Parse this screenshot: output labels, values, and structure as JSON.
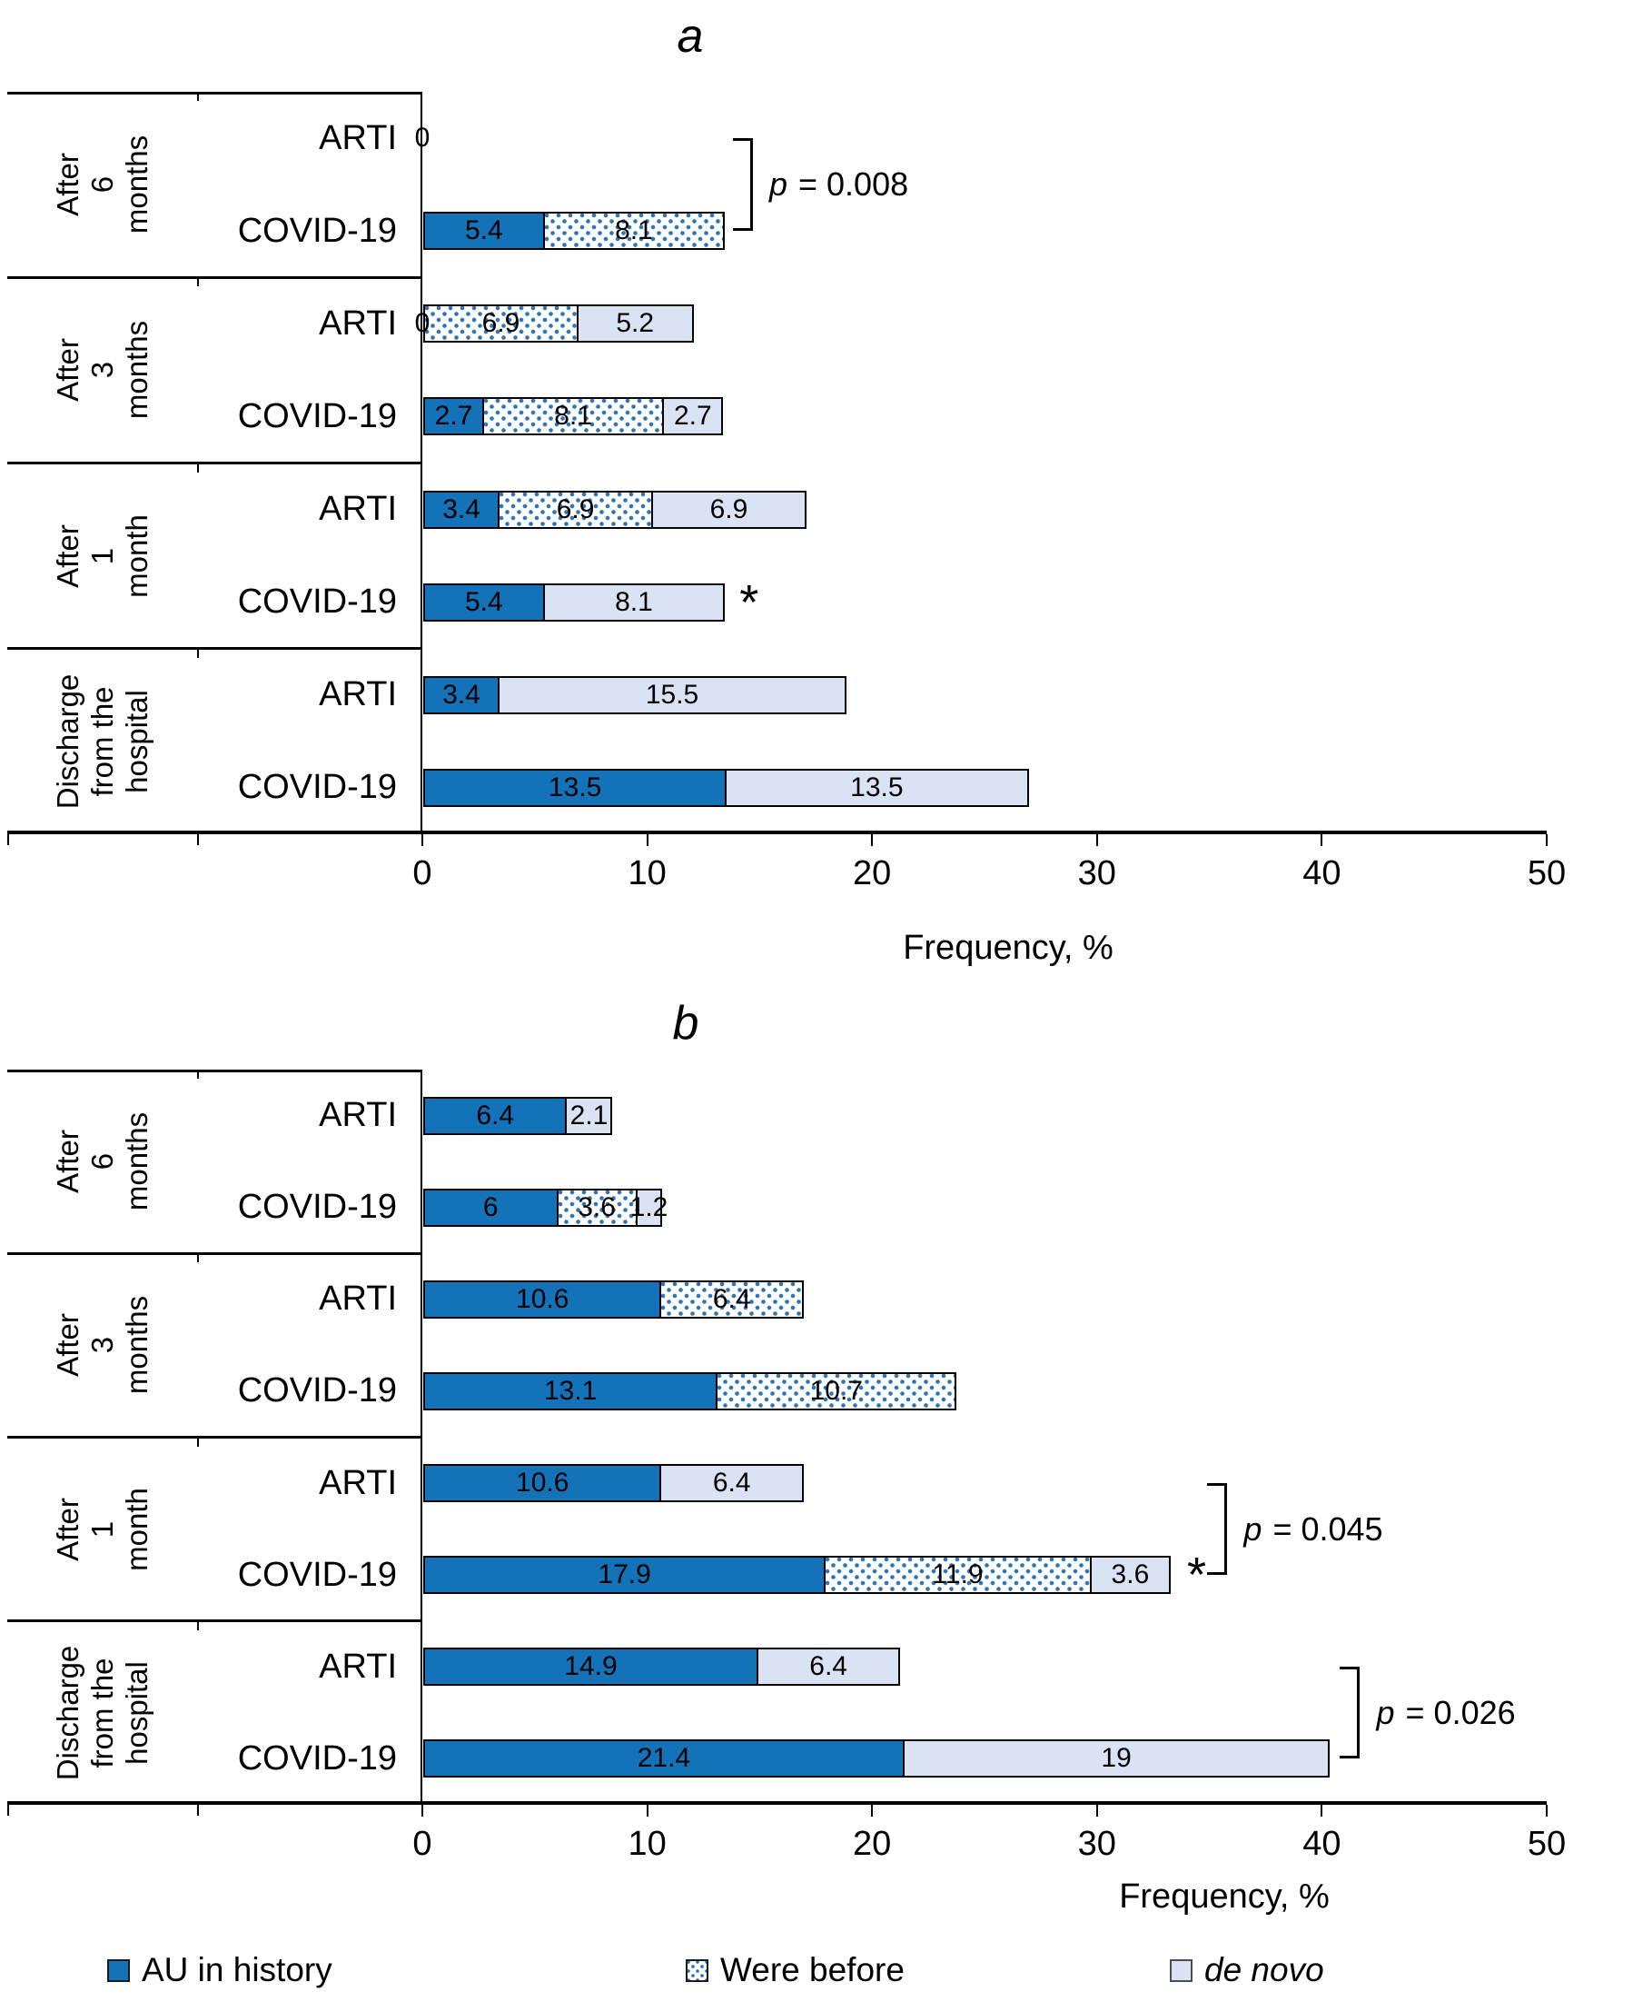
{
  "colors": {
    "au_in_history": "#1472B9",
    "were_before_dot": "#2E75B6",
    "de_novo": "#DAE3F3",
    "bar_border": "#000000"
  },
  "legend": {
    "items": [
      {
        "label": "AU in history",
        "series": "au_in_history"
      },
      {
        "label": "Were before",
        "series": "were_before"
      },
      {
        "label": "de novo",
        "series": "de_novo",
        "italic": true
      }
    ]
  },
  "chart_data": [
    {
      "type": "bar",
      "orientation": "horizontal-stacked",
      "panel_label": "a",
      "xlabel": "Frequency, %",
      "xlim": [
        0,
        50
      ],
      "xticks": [
        0,
        10,
        20,
        30,
        40,
        50
      ],
      "series_names": [
        "AU in history",
        "Were before",
        "de novo"
      ],
      "groups": [
        {
          "label": "After 6 months",
          "label_lines": [
            "After",
            "6 months"
          ],
          "rows": [
            {
              "label": "ARTI",
              "zero_label": "0",
              "segments": []
            },
            {
              "label": "COVID-19",
              "segments": [
                {
                  "series": "au_in_history",
                  "value": 5.4
                },
                {
                  "series": "were_before",
                  "value": 8.1
                }
              ]
            }
          ]
        },
        {
          "label": "After 3 months",
          "label_lines": [
            "After",
            "3 months"
          ],
          "rows": [
            {
              "label": "ARTI",
              "zero_label": "0",
              "segments": [
                {
                  "series": "were_before",
                  "value": 6.9
                },
                {
                  "series": "de_novo",
                  "value": 5.2
                }
              ]
            },
            {
              "label": "COVID-19",
              "segments": [
                {
                  "series": "au_in_history",
                  "value": 2.7
                },
                {
                  "series": "were_before",
                  "value": 8.1
                },
                {
                  "series": "de_novo",
                  "value": 2.7
                }
              ]
            }
          ]
        },
        {
          "label": "After 1 month",
          "label_lines": [
            "After",
            "1 month"
          ],
          "rows": [
            {
              "label": "ARTI",
              "segments": [
                {
                  "series": "au_in_history",
                  "value": 3.4
                },
                {
                  "series": "were_before",
                  "value": 6.9
                },
                {
                  "series": "de_novo",
                  "value": 6.9
                }
              ]
            },
            {
              "label": "COVID-19",
              "star": true,
              "segments": [
                {
                  "series": "au_in_history",
                  "value": 5.4
                },
                {
                  "series": "de_novo",
                  "value": 8.1
                }
              ]
            }
          ]
        },
        {
          "label": "Discharge from the hospital",
          "label_lines": [
            "Discharge",
            "from the",
            "hospital"
          ],
          "rows": [
            {
              "label": "ARTI",
              "segments": [
                {
                  "series": "au_in_history",
                  "value": 3.4
                },
                {
                  "series": "de_novo",
                  "value": 15.5
                }
              ]
            },
            {
              "label": "COVID-19",
              "segments": [
                {
                  "series": "au_in_history",
                  "value": 13.5
                },
                {
                  "series": "de_novo",
                  "value": 13.5
                }
              ]
            }
          ]
        }
      ],
      "annotations": [
        {
          "type": "bracket",
          "text": "p = 0.008",
          "x": 14.7,
          "row_from": 0,
          "row_to": 1
        }
      ]
    },
    {
      "type": "bar",
      "orientation": "horizontal-stacked",
      "panel_label": "b",
      "xlabel": "Frequency, %",
      "xlim": [
        0,
        50
      ],
      "xticks": [
        0,
        10,
        20,
        30,
        40,
        50
      ],
      "series_names": [
        "AU in history",
        "Were before",
        "de novo"
      ],
      "groups": [
        {
          "label": "After 6 months",
          "label_lines": [
            "After",
            "6 months"
          ],
          "rows": [
            {
              "label": "ARTI",
              "segments": [
                {
                  "series": "au_in_history",
                  "value": 6.4
                },
                {
                  "series": "de_novo",
                  "value": 2.1
                }
              ]
            },
            {
              "label": "COVID-19",
              "segments": [
                {
                  "series": "au_in_history",
                  "value": 6
                },
                {
                  "series": "were_before",
                  "value": 3.6
                },
                {
                  "series": "de_novo",
                  "value": 1.2
                }
              ]
            }
          ]
        },
        {
          "label": "After 3 months",
          "label_lines": [
            "After",
            "3 months"
          ],
          "rows": [
            {
              "label": "ARTI",
              "segments": [
                {
                  "series": "au_in_history",
                  "value": 10.6
                },
                {
                  "series": "were_before",
                  "value": 6.4
                }
              ]
            },
            {
              "label": "COVID-19",
              "segments": [
                {
                  "series": "au_in_history",
                  "value": 13.1
                },
                {
                  "series": "were_before",
                  "value": 10.7
                }
              ]
            }
          ]
        },
        {
          "label": "After 1 month",
          "label_lines": [
            "After",
            "1 month"
          ],
          "rows": [
            {
              "label": "ARTI",
              "segments": [
                {
                  "series": "au_in_history",
                  "value": 10.6
                },
                {
                  "series": "de_novo",
                  "value": 6.4
                }
              ]
            },
            {
              "label": "COVID-19",
              "star": true,
              "segments": [
                {
                  "series": "au_in_history",
                  "value": 17.9
                },
                {
                  "series": "were_before",
                  "value": 11.9
                },
                {
                  "series": "de_novo",
                  "value": 3.6
                }
              ]
            }
          ]
        },
        {
          "label": "Discharge from the hospital",
          "label_lines": [
            "Discharge",
            "from the",
            "hospital"
          ],
          "rows": [
            {
              "label": "ARTI",
              "segments": [
                {
                  "series": "au_in_history",
                  "value": 14.9
                },
                {
                  "series": "de_novo",
                  "value": 6.4
                }
              ]
            },
            {
              "label": "COVID-19",
              "segments": [
                {
                  "series": "au_in_history",
                  "value": 21.4
                },
                {
                  "series": "de_novo",
                  "value": 19
                }
              ]
            }
          ]
        }
      ],
      "annotations": [
        {
          "type": "bracket",
          "text": "p = 0.045",
          "x": 35.8,
          "row_from": 4,
          "row_to": 5
        },
        {
          "type": "bracket",
          "text": "p = 0.026",
          "x": 41.7,
          "row_from": 6,
          "row_to": 7
        }
      ]
    }
  ]
}
